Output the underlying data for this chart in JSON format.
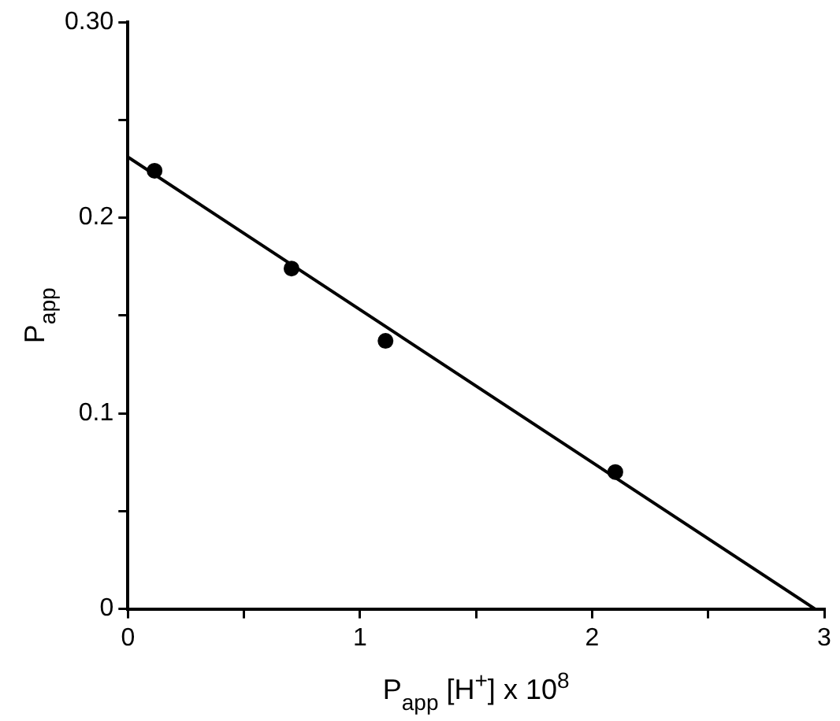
{
  "chart_data": {
    "type": "scatter",
    "xlabel": "P$_{app}$ [H$^{+}$] x 10$^{8}$",
    "ylabel": "P$_{app}$",
    "xlim": [
      0,
      3
    ],
    "ylim": [
      0,
      0.3
    ],
    "xticks": [
      0,
      {
        "value": 0.5,
        "label": null
      },
      1,
      {
        "value": 1.5,
        "label": null
      },
      2,
      {
        "value": 2.5,
        "label": null
      },
      3
    ],
    "yticks": [
      0,
      {
        "value": 0.05,
        "label": null
      },
      0.1,
      {
        "value": 0.15,
        "label": null
      },
      0.2,
      {
        "value": 0.25,
        "label": null
      },
      {
        "value": 0.3,
        "label": "0.30"
      }
    ],
    "grid": false,
    "legend": false,
    "marker": "circle",
    "series": [
      {
        "type": "scatter",
        "color": "#000000",
        "x": [
          0.115,
          0.705,
          1.11,
          2.1
        ],
        "values": [
          0.224,
          0.174,
          0.137,
          0.07
        ]
      },
      {
        "type": "line",
        "color": "#000000",
        "marker": "none",
        "line_style": "solid",
        "x": [
          0,
          2.96
        ],
        "values": [
          0.231,
          0
        ]
      }
    ]
  }
}
